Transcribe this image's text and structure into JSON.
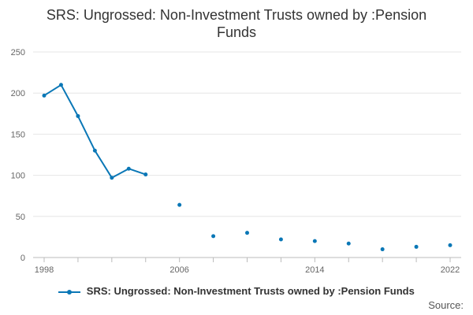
{
  "chart_data": {
    "type": "line",
    "title_line1": "SRS: Ungrossed: Non-Investment Trusts owned by :Pension",
    "title_line2": "Funds",
    "xlabel": "",
    "ylabel": "",
    "ylim": [
      0,
      250
    ],
    "yticks": [
      0,
      50,
      100,
      150,
      200,
      250
    ],
    "xlim": [
      1998,
      2022
    ],
    "xticks": [
      1998,
      2006,
      2014,
      2022
    ],
    "grid": true,
    "legend_position": "bottom",
    "series": [
      {
        "name": "SRS: Ungrossed: Non-Investment Trusts owned by :Pension Funds",
        "color": "#0a77b6",
        "x": [
          1998,
          1999,
          2000,
          2001,
          2002,
          2003,
          2004,
          2006,
          2008,
          2010,
          2012,
          2014,
          2016,
          2018,
          2020,
          2022
        ],
        "values": [
          197,
          210,
          172,
          130,
          97,
          108,
          101,
          64,
          26,
          30,
          22,
          20,
          17,
          10,
          13,
          15
        ],
        "connected_through": 2004
      }
    ]
  },
  "source_label": "Source:"
}
